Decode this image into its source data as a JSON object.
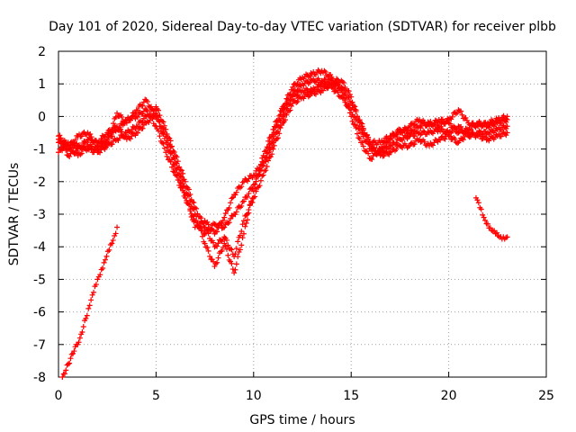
{
  "chart_data": {
    "type": "scatter",
    "title": "Day 101 of 2020, Sidereal Day-to-day VTEC variation (SDTVAR) for receiver plbb",
    "xlabel": "GPS time / hours",
    "ylabel": "SDTVAR / TECUs",
    "xlim": [
      0,
      25
    ],
    "ylim": [
      -8,
      2
    ],
    "xticks": [
      "0",
      "5",
      "10",
      "15",
      "20",
      "25"
    ],
    "yticks": [
      "2",
      "1",
      "0",
      "-1",
      "-2",
      "-3",
      "-4",
      "-5",
      "-6",
      "-7",
      "-8"
    ],
    "grid": true,
    "marker": "+",
    "color": "#ff0000",
    "series": [
      {
        "name": "track-1",
        "points": [
          [
            0,
            -0.8
          ],
          [
            0.5,
            -1.0
          ],
          [
            1,
            -0.6
          ],
          [
            1.5,
            -0.5
          ],
          [
            2,
            -0.9
          ],
          [
            2.5,
            -0.7
          ],
          [
            3,
            -0.4
          ],
          [
            3.5,
            -0.1
          ],
          [
            4,
            0.0
          ],
          [
            4.5,
            0.2
          ],
          [
            5,
            -0.3
          ],
          [
            5.5,
            -1.1
          ],
          [
            6,
            -1.8
          ],
          [
            6.5,
            -2.5
          ],
          [
            7,
            -3.2
          ],
          [
            7.5,
            -3.6
          ],
          [
            8,
            -3.3
          ],
          [
            8.5,
            -3.4
          ],
          [
            9,
            -3.0
          ],
          [
            9.5,
            -2.6
          ],
          [
            10,
            -2.1
          ],
          [
            10.5,
            -1.5
          ],
          [
            11,
            -0.8
          ],
          [
            11.5,
            0.0
          ],
          [
            12,
            0.6
          ],
          [
            12.5,
            0.8
          ],
          [
            13,
            0.8
          ],
          [
            13.5,
            1.0
          ],
          [
            14,
            0.9
          ],
          [
            14.5,
            0.6
          ],
          [
            15,
            0.2
          ],
          [
            15.5,
            -0.5
          ],
          [
            16,
            -1.0
          ],
          [
            16.5,
            -1.1
          ],
          [
            17,
            -0.9
          ],
          [
            17.5,
            -0.7
          ],
          [
            18,
            -0.6
          ],
          [
            18.5,
            -0.5
          ],
          [
            19,
            -0.5
          ],
          [
            19.5,
            -0.4
          ],
          [
            20,
            -0.5
          ],
          [
            20.5,
            -0.3
          ],
          [
            21,
            -0.6
          ],
          [
            21.5,
            -0.5
          ],
          [
            22,
            -0.5
          ],
          [
            22.5,
            -0.4
          ],
          [
            23,
            -0.3
          ]
        ]
      },
      {
        "name": "track-2",
        "points": [
          [
            0,
            -1.1
          ],
          [
            0.5,
            -0.8
          ],
          [
            1,
            -0.9
          ],
          [
            1.5,
            -1.0
          ],
          [
            2,
            -1.1
          ],
          [
            2.5,
            -0.9
          ],
          [
            3,
            -0.7
          ],
          [
            3.5,
            -0.5
          ],
          [
            4,
            -0.3
          ],
          [
            4.5,
            0.0
          ],
          [
            5,
            0.3
          ],
          [
            5.5,
            -0.4
          ],
          [
            6,
            -1.2
          ],
          [
            6.5,
            -2.0
          ],
          [
            7,
            -2.8
          ],
          [
            7.5,
            -3.4
          ],
          [
            8,
            -4.0
          ],
          [
            8.5,
            -3.7
          ],
          [
            9,
            -4.3
          ],
          [
            9.5,
            -3.2
          ],
          [
            10,
            -2.5
          ],
          [
            10.5,
            -1.8
          ],
          [
            11,
            -1.0
          ],
          [
            11.5,
            -0.2
          ],
          [
            12,
            0.4
          ],
          [
            12.5,
            0.6
          ],
          [
            13,
            0.7
          ],
          [
            13.5,
            0.8
          ],
          [
            14,
            1.0
          ],
          [
            14.5,
            0.9
          ],
          [
            15,
            0.4
          ],
          [
            15.5,
            -0.2
          ],
          [
            16,
            -0.9
          ],
          [
            16.5,
            -1.2
          ],
          [
            17,
            -1.1
          ],
          [
            17.5,
            -0.9
          ],
          [
            18,
            -0.9
          ],
          [
            18.5,
            -0.7
          ],
          [
            19,
            -0.9
          ],
          [
            19.5,
            -0.7
          ],
          [
            20,
            -0.6
          ],
          [
            20.5,
            -0.8
          ],
          [
            21,
            -0.5
          ],
          [
            21.5,
            -0.6
          ],
          [
            22,
            -0.7
          ],
          [
            22.5,
            -0.6
          ],
          [
            23,
            -0.5
          ]
        ]
      },
      {
        "name": "track-3",
        "points": [
          [
            0,
            -0.7
          ],
          [
            0.5,
            -1.2
          ],
          [
            1,
            -1.0
          ],
          [
            1.5,
            -0.7
          ],
          [
            2,
            -0.8
          ],
          [
            2.5,
            -0.5
          ],
          [
            3,
            -0.3
          ],
          [
            3.5,
            -0.7
          ],
          [
            4,
            -0.5
          ],
          [
            4.5,
            -0.2
          ],
          [
            5,
            0.1
          ],
          [
            5.5,
            -0.6
          ],
          [
            6,
            -1.4
          ],
          [
            6.5,
            -2.2
          ],
          [
            7,
            -3.0
          ],
          [
            7.5,
            -3.9
          ],
          [
            8,
            -4.6
          ],
          [
            8.5,
            -3.9
          ],
          [
            9,
            -4.8
          ],
          [
            9.5,
            -3.6
          ],
          [
            10,
            -2.3
          ],
          [
            10.5,
            -1.2
          ],
          [
            11,
            -0.4
          ],
          [
            11.5,
            0.3
          ],
          [
            12,
            0.9
          ],
          [
            12.5,
            1.2
          ],
          [
            13,
            1.3
          ],
          [
            13.5,
            1.4
          ],
          [
            14,
            1.2
          ],
          [
            14.5,
            0.8
          ],
          [
            15,
            0.0
          ],
          [
            15.5,
            -0.8
          ],
          [
            16,
            -1.3
          ],
          [
            16.5,
            -1.0
          ],
          [
            17,
            -0.7
          ],
          [
            17.5,
            -0.4
          ],
          [
            18,
            -0.5
          ],
          [
            18.5,
            -0.3
          ],
          [
            19,
            -0.2
          ],
          [
            19.5,
            -0.3
          ],
          [
            20,
            -0.1
          ],
          [
            20.5,
            0.2
          ],
          [
            21,
            -0.2
          ],
          [
            21.5,
            -0.3
          ],
          [
            22,
            -0.2
          ],
          [
            22.5,
            -0.1
          ],
          [
            23,
            0.0
          ]
        ]
      },
      {
        "name": "track-4",
        "points": [
          [
            0,
            -0.6
          ],
          [
            0.5,
            -0.9
          ],
          [
            1,
            -1.2
          ],
          [
            1.5,
            -0.9
          ],
          [
            2,
            -1.0
          ],
          [
            2.5,
            -0.8
          ],
          [
            3,
            0.1
          ],
          [
            3.5,
            -0.2
          ],
          [
            4,
            0.2
          ],
          [
            4.5,
            0.5
          ],
          [
            5,
            0.0
          ],
          [
            5.5,
            -0.8
          ],
          [
            6,
            -1.6
          ],
          [
            6.5,
            -2.4
          ],
          [
            7,
            -3.4
          ],
          [
            7.5,
            -3.2
          ],
          [
            8,
            -3.6
          ],
          [
            8.5,
            -3.1
          ],
          [
            9,
            -2.4
          ],
          [
            9.5,
            -2.0
          ],
          [
            10,
            -1.8
          ],
          [
            10.5,
            -1.4
          ],
          [
            11,
            -0.6
          ],
          [
            11.5,
            0.2
          ],
          [
            12,
            0.7
          ],
          [
            12.5,
            1.0
          ],
          [
            13,
            1.1
          ],
          [
            13.5,
            1.1
          ],
          [
            14,
            1.1
          ],
          [
            14.5,
            1.1
          ],
          [
            15,
            0.6
          ],
          [
            15.5,
            -0.3
          ],
          [
            16,
            -0.8
          ],
          [
            16.5,
            -0.8
          ],
          [
            17,
            -0.6
          ],
          [
            17.5,
            -0.5
          ],
          [
            18,
            -0.3
          ],
          [
            18.5,
            -0.1
          ],
          [
            19,
            -0.3
          ],
          [
            19.5,
            -0.1
          ],
          [
            20,
            -0.2
          ],
          [
            20.5,
            -0.5
          ],
          [
            21,
            -0.4
          ],
          [
            21.5,
            -0.2
          ],
          [
            22,
            -0.3
          ],
          [
            22.5,
            -0.2
          ],
          [
            23,
            -0.1
          ]
        ]
      },
      {
        "name": "track-5",
        "points": [
          [
            0.2,
            -8.0
          ],
          [
            0.5,
            -7.6
          ],
          [
            0.8,
            -7.2
          ],
          [
            1.1,
            -6.8
          ],
          [
            1.4,
            -6.2
          ],
          [
            1.6,
            -5.8
          ],
          [
            1.8,
            -5.4
          ],
          [
            2.0,
            -5.0
          ],
          [
            2.2,
            -4.7
          ],
          [
            2.4,
            -4.4
          ],
          [
            2.6,
            -4.1
          ],
          [
            2.8,
            -3.8
          ],
          [
            3.0,
            -3.4
          ]
        ]
      },
      {
        "name": "track-6",
        "points": [
          [
            21.4,
            -2.5
          ],
          [
            21.6,
            -2.8
          ],
          [
            21.8,
            -3.1
          ],
          [
            22.0,
            -3.3
          ],
          [
            22.2,
            -3.5
          ],
          [
            22.4,
            -3.6
          ],
          [
            22.6,
            -3.7
          ],
          [
            22.8,
            -3.7
          ],
          [
            23.0,
            -3.7
          ]
        ]
      }
    ]
  }
}
